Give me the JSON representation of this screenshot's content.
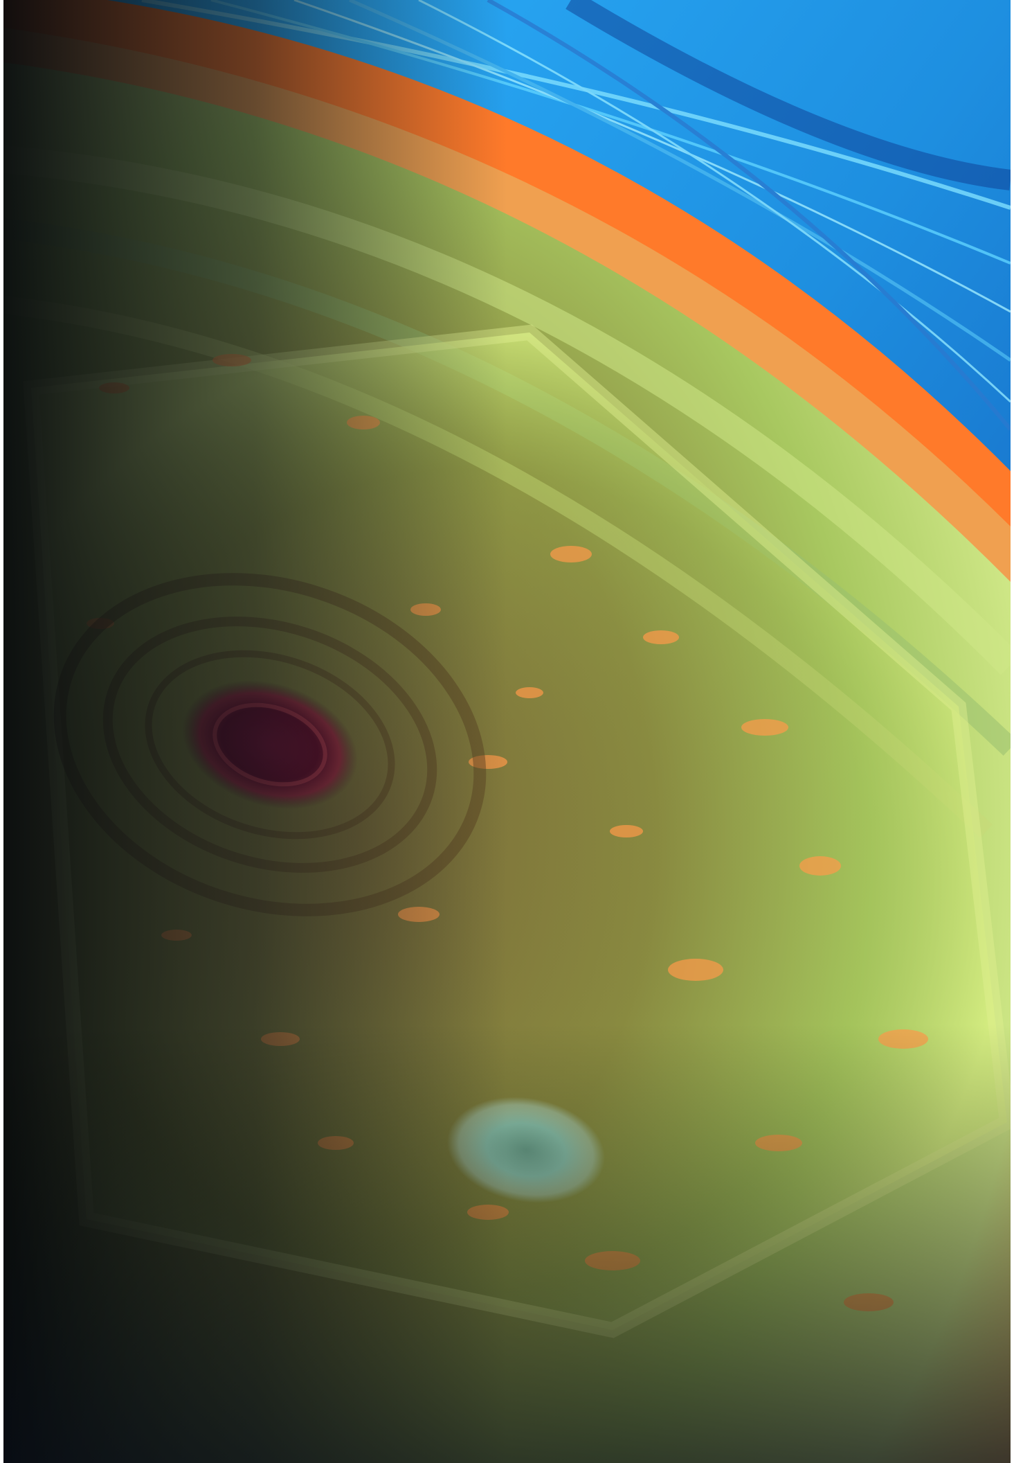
{
  "image": {
    "subject": "saturn-north-pole-hexagon",
    "palette": {
      "ring_blue": "#1e8fe0",
      "ring_cyan": "#5fd3ff",
      "limb_orange": "#ff7a2a",
      "band_green": "#b8e070",
      "hexagon_olive": "#8a8a40",
      "storm_core": "#6a0f2a",
      "cloud_orange": "#ff9a4a",
      "deep_shadow": "#101820",
      "pale_vortex": "#8fc9b0"
    }
  }
}
